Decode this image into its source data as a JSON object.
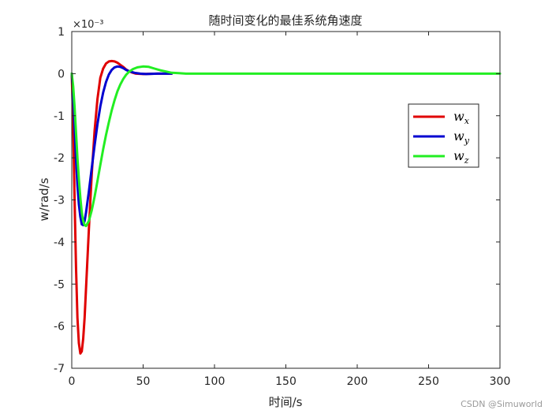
{
  "chart_data": {
    "type": "line",
    "title": "随时间变化的最佳系统角速度",
    "xlabel": "时间/s",
    "ylabel": "w/rad/s",
    "y_exponent_label": "×10⁻³",
    "xlim": [
      0,
      300
    ],
    "ylim": [
      -7,
      1
    ],
    "xticks": [
      0,
      50,
      100,
      150,
      200,
      250,
      300
    ],
    "yticks": [
      -7,
      -6,
      -5,
      -4,
      -3,
      -2,
      -1,
      0,
      1
    ],
    "grid": false,
    "legend_position": "top-right",
    "units_scale": "1e-3",
    "series": [
      {
        "name": "w_x",
        "legend_main": "w",
        "legend_sub": "x",
        "color": "#e00000",
        "x": [
          0,
          1,
          2,
          3,
          4,
          5,
          6,
          7,
          8,
          9,
          10,
          12,
          14,
          16,
          18,
          20,
          22,
          24,
          26,
          28,
          30,
          32,
          34,
          36,
          38,
          40,
          42,
          45,
          50,
          55,
          60,
          65,
          70
        ],
        "y": [
          0,
          -1.2,
          -3.0,
          -4.6,
          -5.8,
          -6.4,
          -6.65,
          -6.6,
          -6.3,
          -5.8,
          -5.1,
          -3.7,
          -2.4,
          -1.35,
          -0.6,
          -0.1,
          0.12,
          0.24,
          0.29,
          0.3,
          0.29,
          0.26,
          0.21,
          0.16,
          0.1,
          0.06,
          0.03,
          0.0,
          -0.01,
          -0.005,
          0,
          0,
          0
        ]
      },
      {
        "name": "w_y",
        "legend_main": "w",
        "legend_sub": "y",
        "color": "#0000d0",
        "x": [
          0,
          1,
          2,
          3,
          4,
          5,
          6,
          7,
          8,
          9,
          10,
          12,
          14,
          16,
          18,
          20,
          22,
          24,
          26,
          28,
          30,
          32,
          34,
          36,
          38,
          40,
          44,
          48,
          52,
          56,
          60,
          65,
          70
        ],
        "y": [
          0,
          -0.5,
          -1.3,
          -2.05,
          -2.65,
          -3.1,
          -3.4,
          -3.58,
          -3.6,
          -3.5,
          -3.3,
          -2.8,
          -2.25,
          -1.7,
          -1.2,
          -0.78,
          -0.45,
          -0.2,
          -0.02,
          0.09,
          0.15,
          0.17,
          0.16,
          0.13,
          0.09,
          0.06,
          0.02,
          0.0,
          -0.01,
          -0.005,
          0,
          0,
          0
        ]
      },
      {
        "name": "w_z",
        "legend_main": "w",
        "legend_sub": "z",
        "color": "#22ee22",
        "x": [
          0,
          1,
          2,
          3,
          4,
          5,
          6,
          7,
          8,
          9,
          10,
          12,
          14,
          16,
          18,
          20,
          22,
          24,
          26,
          28,
          30,
          32,
          34,
          36,
          38,
          40,
          43,
          46,
          50,
          54,
          58,
          62,
          66,
          70,
          75,
          80,
          90,
          100,
          150,
          200,
          250,
          300
        ],
        "y": [
          0,
          -0.3,
          -0.8,
          -1.4,
          -2.0,
          -2.5,
          -2.95,
          -3.3,
          -3.5,
          -3.6,
          -3.62,
          -3.5,
          -3.25,
          -2.92,
          -2.55,
          -2.17,
          -1.8,
          -1.46,
          -1.15,
          -0.87,
          -0.63,
          -0.42,
          -0.26,
          -0.13,
          -0.03,
          0.04,
          0.11,
          0.15,
          0.17,
          0.16,
          0.12,
          0.08,
          0.05,
          0.02,
          0.01,
          0.0,
          0,
          0,
          0,
          0,
          0,
          0
        ]
      }
    ]
  },
  "watermark": "CSDN @Simuworld"
}
